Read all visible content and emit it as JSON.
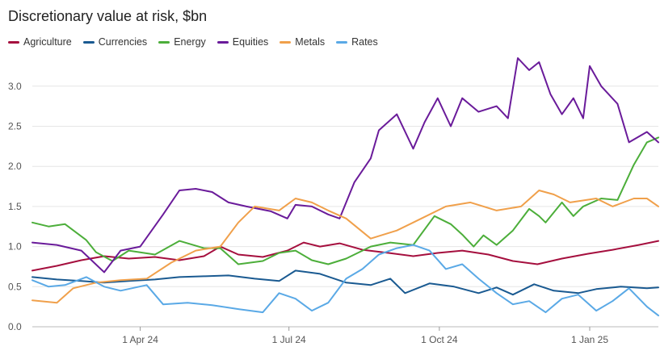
{
  "chart_data": {
    "type": "line",
    "title": "Discretionary value at risk, $bn",
    "xlabel": "",
    "ylabel": "",
    "x_range": [
      "2024-01-26",
      "2025-02-12"
    ],
    "ylim": [
      0,
      3.35
    ],
    "y_ticks": [
      0,
      0.5,
      1.0,
      1.5,
      2.0,
      2.5,
      3.0
    ],
    "y_tick_labels": [
      "0.0",
      "0.5",
      "1.0",
      "1.5",
      "2.0",
      "2.5",
      "3.0"
    ],
    "x_ticks": [
      "2024-04-01",
      "2024-07-01",
      "2024-10-01",
      "2025-01-01"
    ],
    "x_tick_labels": [
      "1 Apr 24",
      "1 Jul 24",
      "1 Oct 24",
      "1 Jan 25"
    ],
    "grid": "horizontal",
    "legend_position": "top-left",
    "series": [
      {
        "name": "Agriculture",
        "color": "#a50f3e",
        "points": [
          [
            "2024-01-26",
            0.7
          ],
          [
            "2024-02-10",
            0.76
          ],
          [
            "2024-02-25",
            0.83
          ],
          [
            "2024-03-10",
            0.88
          ],
          [
            "2024-03-25",
            0.85
          ],
          [
            "2024-04-10",
            0.87
          ],
          [
            "2024-04-25",
            0.83
          ],
          [
            "2024-05-10",
            0.88
          ],
          [
            "2024-05-20",
            1.0
          ],
          [
            "2024-05-31",
            0.9
          ],
          [
            "2024-06-15",
            0.87
          ],
          [
            "2024-06-30",
            0.95
          ],
          [
            "2024-07-10",
            1.05
          ],
          [
            "2024-07-20",
            1.0
          ],
          [
            "2024-08-01",
            1.04
          ],
          [
            "2024-08-15",
            0.96
          ],
          [
            "2024-08-31",
            0.92
          ],
          [
            "2024-09-15",
            0.88
          ],
          [
            "2024-09-30",
            0.92
          ],
          [
            "2024-10-15",
            0.95
          ],
          [
            "2024-10-31",
            0.9
          ],
          [
            "2024-11-15",
            0.82
          ],
          [
            "2024-11-30",
            0.78
          ],
          [
            "2024-12-15",
            0.85
          ],
          [
            "2024-12-31",
            0.91
          ],
          [
            "2025-01-15",
            0.96
          ],
          [
            "2025-01-31",
            1.02
          ],
          [
            "2025-02-12",
            1.07
          ]
        ]
      },
      {
        "name": "Currencies",
        "color": "#1a5a91",
        "points": [
          [
            "2024-01-26",
            0.62
          ],
          [
            "2024-02-10",
            0.59
          ],
          [
            "2024-02-25",
            0.57
          ],
          [
            "2024-03-10",
            0.55
          ],
          [
            "2024-03-25",
            0.57
          ],
          [
            "2024-04-10",
            0.59
          ],
          [
            "2024-04-25",
            0.62
          ],
          [
            "2024-05-10",
            0.63
          ],
          [
            "2024-05-25",
            0.64
          ],
          [
            "2024-06-10",
            0.6
          ],
          [
            "2024-06-25",
            0.57
          ],
          [
            "2024-07-05",
            0.7
          ],
          [
            "2024-07-20",
            0.66
          ],
          [
            "2024-08-05",
            0.55
          ],
          [
            "2024-08-20",
            0.52
          ],
          [
            "2024-09-01",
            0.6
          ],
          [
            "2024-09-10",
            0.42
          ],
          [
            "2024-09-25",
            0.54
          ],
          [
            "2024-10-10",
            0.5
          ],
          [
            "2024-10-25",
            0.42
          ],
          [
            "2024-11-05",
            0.49
          ],
          [
            "2024-11-15",
            0.4
          ],
          [
            "2024-11-28",
            0.53
          ],
          [
            "2024-12-10",
            0.45
          ],
          [
            "2024-12-25",
            0.42
          ],
          [
            "2025-01-05",
            0.47
          ],
          [
            "2025-01-20",
            0.5
          ],
          [
            "2025-02-05",
            0.48
          ],
          [
            "2025-02-12",
            0.49
          ]
        ]
      },
      {
        "name": "Energy",
        "color": "#4cae3a",
        "points": [
          [
            "2024-01-26",
            1.3
          ],
          [
            "2024-02-05",
            1.25
          ],
          [
            "2024-02-15",
            1.28
          ],
          [
            "2024-02-28",
            1.08
          ],
          [
            "2024-03-05",
            0.93
          ],
          [
            "2024-03-15",
            0.82
          ],
          [
            "2024-03-25",
            0.95
          ],
          [
            "2024-04-10",
            0.9
          ],
          [
            "2024-04-25",
            1.07
          ],
          [
            "2024-05-10",
            0.98
          ],
          [
            "2024-05-20",
            0.98
          ],
          [
            "2024-05-31",
            0.78
          ],
          [
            "2024-06-15",
            0.82
          ],
          [
            "2024-06-25",
            0.92
          ],
          [
            "2024-07-05",
            0.95
          ],
          [
            "2024-07-15",
            0.83
          ],
          [
            "2024-07-25",
            0.78
          ],
          [
            "2024-08-05",
            0.85
          ],
          [
            "2024-08-20",
            1.0
          ],
          [
            "2024-09-01",
            1.05
          ],
          [
            "2024-09-15",
            1.02
          ],
          [
            "2024-09-28",
            1.38
          ],
          [
            "2024-10-08",
            1.28
          ],
          [
            "2024-10-15",
            1.15
          ],
          [
            "2024-10-22",
            1.0
          ],
          [
            "2024-10-28",
            1.14
          ],
          [
            "2024-11-05",
            1.02
          ],
          [
            "2024-11-15",
            1.2
          ],
          [
            "2024-11-25",
            1.47
          ],
          [
            "2024-12-01",
            1.38
          ],
          [
            "2024-12-05",
            1.3
          ],
          [
            "2024-12-15",
            1.55
          ],
          [
            "2024-12-22",
            1.38
          ],
          [
            "2024-12-28",
            1.5
          ],
          [
            "2025-01-08",
            1.6
          ],
          [
            "2025-01-18",
            1.58
          ],
          [
            "2025-01-28",
            2.02
          ],
          [
            "2025-02-05",
            2.3
          ],
          [
            "2025-02-12",
            2.36
          ]
        ]
      },
      {
        "name": "Equities",
        "color": "#6a1b9a",
        "points": [
          [
            "2024-01-26",
            1.05
          ],
          [
            "2024-02-10",
            1.02
          ],
          [
            "2024-02-25",
            0.95
          ],
          [
            "2024-03-10",
            0.68
          ],
          [
            "2024-03-20",
            0.95
          ],
          [
            "2024-04-01",
            1.0
          ],
          [
            "2024-04-15",
            1.4
          ],
          [
            "2024-04-25",
            1.7
          ],
          [
            "2024-05-05",
            1.72
          ],
          [
            "2024-05-15",
            1.68
          ],
          [
            "2024-05-25",
            1.55
          ],
          [
            "2024-06-05",
            1.5
          ],
          [
            "2024-06-20",
            1.44
          ],
          [
            "2024-06-30",
            1.35
          ],
          [
            "2024-07-05",
            1.52
          ],
          [
            "2024-07-15",
            1.5
          ],
          [
            "2024-07-25",
            1.4
          ],
          [
            "2024-08-01",
            1.35
          ],
          [
            "2024-08-10",
            1.8
          ],
          [
            "2024-08-20",
            2.1
          ],
          [
            "2024-08-25",
            2.45
          ],
          [
            "2024-09-05",
            2.65
          ],
          [
            "2024-09-15",
            2.22
          ],
          [
            "2024-09-22",
            2.55
          ],
          [
            "2024-09-30",
            2.85
          ],
          [
            "2024-10-08",
            2.5
          ],
          [
            "2024-10-15",
            2.85
          ],
          [
            "2024-10-25",
            2.68
          ],
          [
            "2024-11-05",
            2.75
          ],
          [
            "2024-11-12",
            2.6
          ],
          [
            "2024-11-18",
            3.35
          ],
          [
            "2024-11-25",
            3.2
          ],
          [
            "2024-12-01",
            3.3
          ],
          [
            "2024-12-08",
            2.9
          ],
          [
            "2024-12-15",
            2.65
          ],
          [
            "2024-12-22",
            2.85
          ],
          [
            "2024-12-28",
            2.6
          ],
          [
            "2025-01-01",
            3.25
          ],
          [
            "2025-01-08",
            3.0
          ],
          [
            "2025-01-18",
            2.78
          ],
          [
            "2025-01-25",
            2.3
          ],
          [
            "2025-02-05",
            2.43
          ],
          [
            "2025-02-12",
            2.3
          ]
        ]
      },
      {
        "name": "Metals",
        "color": "#f0a04b",
        "points": [
          [
            "2024-01-26",
            0.33
          ],
          [
            "2024-02-10",
            0.3
          ],
          [
            "2024-02-20",
            0.48
          ],
          [
            "2024-03-05",
            0.55
          ],
          [
            "2024-03-20",
            0.58
          ],
          [
            "2024-04-05",
            0.6
          ],
          [
            "2024-04-20",
            0.8
          ],
          [
            "2024-05-05",
            0.95
          ],
          [
            "2024-05-20",
            1.0
          ],
          [
            "2024-05-31",
            1.3
          ],
          [
            "2024-06-10",
            1.5
          ],
          [
            "2024-06-25",
            1.45
          ],
          [
            "2024-07-05",
            1.6
          ],
          [
            "2024-07-15",
            1.55
          ],
          [
            "2024-07-25",
            1.45
          ],
          [
            "2024-08-05",
            1.35
          ],
          [
            "2024-08-20",
            1.1
          ],
          [
            "2024-09-05",
            1.2
          ],
          [
            "2024-09-20",
            1.35
          ],
          [
            "2024-10-05",
            1.5
          ],
          [
            "2024-10-20",
            1.55
          ],
          [
            "2024-11-05",
            1.45
          ],
          [
            "2024-11-20",
            1.5
          ],
          [
            "2024-12-01",
            1.7
          ],
          [
            "2024-12-10",
            1.65
          ],
          [
            "2024-12-20",
            1.55
          ],
          [
            "2025-01-05",
            1.6
          ],
          [
            "2025-01-15",
            1.5
          ],
          [
            "2025-01-28",
            1.6
          ],
          [
            "2025-02-05",
            1.6
          ],
          [
            "2025-02-12",
            1.5
          ]
        ]
      },
      {
        "name": "Rates",
        "color": "#5aa9e6",
        "points": [
          [
            "2024-01-26",
            0.58
          ],
          [
            "2024-02-05",
            0.5
          ],
          [
            "2024-02-15",
            0.52
          ],
          [
            "2024-02-28",
            0.62
          ],
          [
            "2024-03-10",
            0.5
          ],
          [
            "2024-03-20",
            0.45
          ],
          [
            "2024-04-05",
            0.52
          ],
          [
            "2024-04-15",
            0.28
          ],
          [
            "2024-04-30",
            0.3
          ],
          [
            "2024-05-15",
            0.27
          ],
          [
            "2024-05-31",
            0.22
          ],
          [
            "2024-06-15",
            0.18
          ],
          [
            "2024-06-25",
            0.42
          ],
          [
            "2024-07-05",
            0.35
          ],
          [
            "2024-07-15",
            0.2
          ],
          [
            "2024-07-25",
            0.3
          ],
          [
            "2024-08-05",
            0.6
          ],
          [
            "2024-08-15",
            0.72
          ],
          [
            "2024-08-25",
            0.9
          ],
          [
            "2024-09-05",
            0.98
          ],
          [
            "2024-09-15",
            1.02
          ],
          [
            "2024-09-25",
            0.95
          ],
          [
            "2024-10-05",
            0.72
          ],
          [
            "2024-10-15",
            0.78
          ],
          [
            "2024-10-25",
            0.6
          ],
          [
            "2024-11-05",
            0.42
          ],
          [
            "2024-11-15",
            0.28
          ],
          [
            "2024-11-25",
            0.32
          ],
          [
            "2024-12-05",
            0.18
          ],
          [
            "2024-12-15",
            0.35
          ],
          [
            "2024-12-25",
            0.4
          ],
          [
            "2025-01-05",
            0.2
          ],
          [
            "2025-01-15",
            0.32
          ],
          [
            "2025-01-25",
            0.48
          ],
          [
            "2025-02-05",
            0.25
          ],
          [
            "2025-02-12",
            0.14
          ]
        ]
      }
    ]
  }
}
